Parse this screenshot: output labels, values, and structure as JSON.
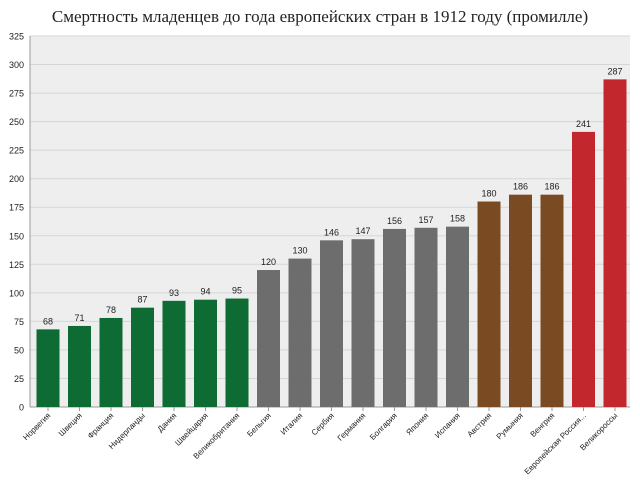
{
  "chart_data": {
    "type": "bar",
    "title": "Смертность младенцев до года европейских стран в 1912 году (промилле)",
    "xlabel": "",
    "ylabel": "",
    "ylim": [
      0,
      325
    ],
    "yticks": [
      0,
      25,
      50,
      75,
      100,
      125,
      150,
      175,
      200,
      225,
      250,
      275,
      300,
      325
    ],
    "grid": true,
    "legend": "none",
    "categories": [
      "Норвегия",
      "Швеция",
      "Франция",
      "Нидерланды",
      "Дания",
      "Швейцария",
      "Великобритания",
      "Бельгия",
      "Италия",
      "Сербия",
      "Германия",
      "Болгария",
      "Япония",
      "Испания",
      "Австрия",
      "Румыния",
      "Венгрия",
      "Европейская Россия...",
      "Великороссы"
    ],
    "values": [
      68,
      71,
      78,
      87,
      93,
      94,
      95,
      120,
      130,
      146,
      147,
      156,
      157,
      158,
      180,
      186,
      186,
      241,
      287
    ],
    "bar_colors": [
      "#0d6b33",
      "#0d6b33",
      "#0d6b33",
      "#0d6b33",
      "#0d6b33",
      "#0d6b33",
      "#0d6b33",
      "#6d6d6d",
      "#6d6d6d",
      "#6d6d6d",
      "#6d6d6d",
      "#6d6d6d",
      "#6d6d6d",
      "#6d6d6d",
      "#7a4a22",
      "#7a4a22",
      "#7a4a22",
      "#c1272d",
      "#c1272d"
    ]
  }
}
